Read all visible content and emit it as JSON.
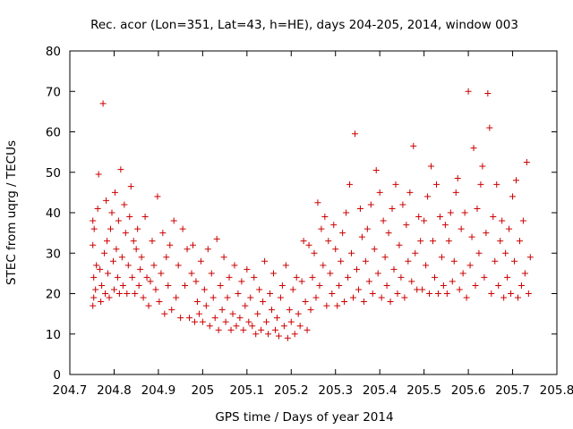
{
  "chart_data": {
    "type": "scatter",
    "title": "Rec. acor (Lon=351, Lat=43, h=HE), days 204-205, 2014, window 003",
    "xlabel": "GPS time / Days of year 2014",
    "ylabel": "STEC from uqrg / TECUs",
    "xlim": [
      204.7,
      205.8
    ],
    "ylim": [
      0,
      80
    ],
    "xticks": [
      "204.7",
      "204.8",
      "204.9",
      "205",
      "205.1",
      "205.2",
      "205.3",
      "205.4",
      "205.5",
      "205.6",
      "205.7",
      "205.8"
    ],
    "yticks": [
      "0",
      "10",
      "20",
      "30",
      "40",
      "50",
      "60",
      "70",
      "80"
    ],
    "grid": false,
    "legend": "none",
    "marker": "plus",
    "color": "#cc0000",
    "series": [
      {
        "x": [
          204.752,
          204.752,
          204.752,
          204.754,
          204.754,
          204.755,
          204.758,
          204.76,
          204.763,
          204.765,
          204.768,
          204.77,
          204.772,
          204.775,
          204.778,
          204.78,
          204.782,
          204.784,
          204.786,
          204.789,
          204.792,
          204.795,
          204.798,
          204.8,
          204.802,
          204.805,
          204.808,
          204.81,
          204.812,
          204.815,
          204.818,
          204.82,
          204.823,
          204.826,
          204.829,
          204.832,
          204.835,
          204.838,
          204.841,
          204.844,
          204.847,
          204.85,
          204.853,
          204.856,
          204.859,
          204.862,
          204.866,
          204.87,
          204.874,
          204.878,
          204.882,
          204.886,
          204.89,
          204.894,
          204.898,
          204.902,
          204.906,
          204.91,
          204.914,
          204.918,
          204.922,
          204.926,
          204.93,
          204.935,
          204.94,
          204.945,
          204.95,
          204.955,
          204.96,
          204.965,
          204.97,
          204.975,
          204.978
        ],
        "y": [
          17,
          32,
          38,
          19,
          24,
          36,
          21,
          27,
          41,
          49.5,
          26,
          18,
          22,
          67,
          30,
          20,
          43,
          33,
          25,
          19,
          36,
          40,
          28,
          21,
          45,
          31,
          24,
          38,
          20,
          50.7,
          29,
          22,
          42,
          35,
          20,
          27,
          39,
          46.5,
          24,
          33,
          20,
          31,
          36,
          22,
          26,
          29,
          19,
          39,
          24,
          17,
          23,
          33,
          27,
          21,
          44,
          18,
          25,
          35,
          15,
          29,
          22,
          32,
          16,
          38,
          19,
          27,
          14,
          36,
          22,
          31,
          14,
          25,
          32
        ]
      },
      {
        "x": [
          204.982,
          204.985,
          204.988,
          204.992,
          204.996,
          205.0,
          205.004,
          205.008,
          205.012,
          205.016,
          205.02,
          205.024,
          205.028,
          205.032,
          205.036,
          205.04,
          205.044,
          205.048,
          205.052,
          205.056,
          205.06,
          205.064,
          205.068,
          205.072,
          205.076,
          205.08,
          205.084,
          205.088,
          205.092,
          205.096,
          205.1,
          205.104,
          205.108,
          205.112,
          205.116,
          205.12,
          205.124,
          205.128,
          205.132,
          205.136,
          205.14,
          205.144,
          205.148,
          205.152,
          205.156,
          205.16,
          205.164,
          205.168,
          205.172,
          205.176,
          205.18,
          205.184,
          205.188,
          205.192,
          205.196,
          205.2,
          205.204,
          205.208,
          205.212,
          205.216,
          205.22,
          205.224,
          205.228,
          205.232,
          205.236,
          205.24
        ],
        "y": [
          13,
          23,
          18,
          15,
          28,
          13,
          21,
          17,
          31,
          12,
          25,
          19,
          14,
          33.5,
          11,
          22,
          16,
          29,
          13,
          19,
          24,
          11,
          15,
          27,
          12,
          20,
          14,
          23,
          11,
          17,
          26,
          13,
          19,
          12,
          24,
          10,
          15,
          21,
          11,
          18,
          28,
          13,
          10,
          20,
          16,
          25,
          11,
          14,
          9.5,
          19,
          22,
          12,
          27,
          9,
          16,
          13,
          21,
          10,
          24,
          15,
          12,
          23,
          33,
          18,
          11,
          32
        ]
      },
      {
        "x": [
          205.244,
          205.248,
          205.252,
          205.256,
          205.26,
          205.264,
          205.268,
          205.272,
          205.276,
          205.28,
          205.284,
          205.288,
          205.292,
          205.296,
          205.3,
          205.304,
          205.308,
          205.312,
          205.316,
          205.32,
          205.324,
          205.328,
          205.332,
          205.336,
          205.34,
          205.344,
          205.348,
          205.352,
          205.356,
          205.36,
          205.364,
          205.368,
          205.372,
          205.376,
          205.38,
          205.384,
          205.388,
          205.392,
          205.396,
          205.4,
          205.404,
          205.408,
          205.412,
          205.416,
          205.42,
          205.424,
          205.428,
          205.432,
          205.436,
          205.44,
          205.444,
          205.448,
          205.452,
          205.456,
          205.46,
          205.464,
          205.468,
          205.472,
          205.476,
          205.48,
          205.484,
          205.488,
          205.492
        ],
        "y": [
          16,
          24,
          30,
          19,
          42.5,
          22,
          36,
          27,
          39,
          17,
          33,
          25,
          20,
          37,
          31,
          17,
          22,
          28,
          35,
          18,
          40,
          24,
          47,
          30,
          19,
          59.5,
          26,
          21,
          41,
          34,
          18,
          28,
          36,
          23,
          42,
          20,
          31,
          50.5,
          25,
          45,
          19,
          38,
          29,
          22,
          35,
          18,
          41,
          26,
          47,
          20,
          32,
          24,
          42,
          19,
          37,
          28,
          45,
          23,
          56.5,
          30,
          21,
          39,
          33
        ]
      },
      {
        "x": [
          205.496,
          205.5,
          205.504,
          205.508,
          205.512,
          205.516,
          205.52,
          205.524,
          205.528,
          205.532,
          205.536,
          205.54,
          205.544,
          205.548,
          205.552,
          205.556,
          205.56,
          205.564,
          205.568,
          205.572,
          205.576,
          205.58,
          205.584,
          205.588,
          205.592,
          205.596,
          205.6,
          205.604,
          205.608,
          205.612,
          205.616,
          205.62,
          205.624,
          205.628,
          205.632,
          205.636,
          205.64,
          205.644,
          205.648,
          205.652,
          205.656,
          205.66,
          205.664,
          205.668,
          205.672,
          205.676,
          205.68,
          205.684,
          205.688,
          205.692,
          205.696,
          205.7,
          205.704,
          205.708,
          205.712,
          205.716,
          205.72,
          205.724,
          205.728,
          205.732,
          205.736,
          205.74
        ],
        "y": [
          21,
          38,
          27,
          44,
          20,
          51.5,
          33,
          24,
          47,
          20,
          39,
          29,
          22,
          37,
          20,
          33,
          40,
          23,
          28,
          45,
          48.5,
          21,
          36,
          25,
          40,
          19,
          70,
          27,
          34,
          56,
          22,
          41,
          30,
          47,
          51.5,
          24,
          35,
          69.5,
          61,
          20,
          39,
          28,
          47,
          22,
          33,
          38,
          19,
          30,
          24,
          36,
          20,
          44,
          28,
          48,
          19,
          33,
          22,
          38,
          25,
          52.5,
          20,
          29
        ]
      }
    ]
  }
}
